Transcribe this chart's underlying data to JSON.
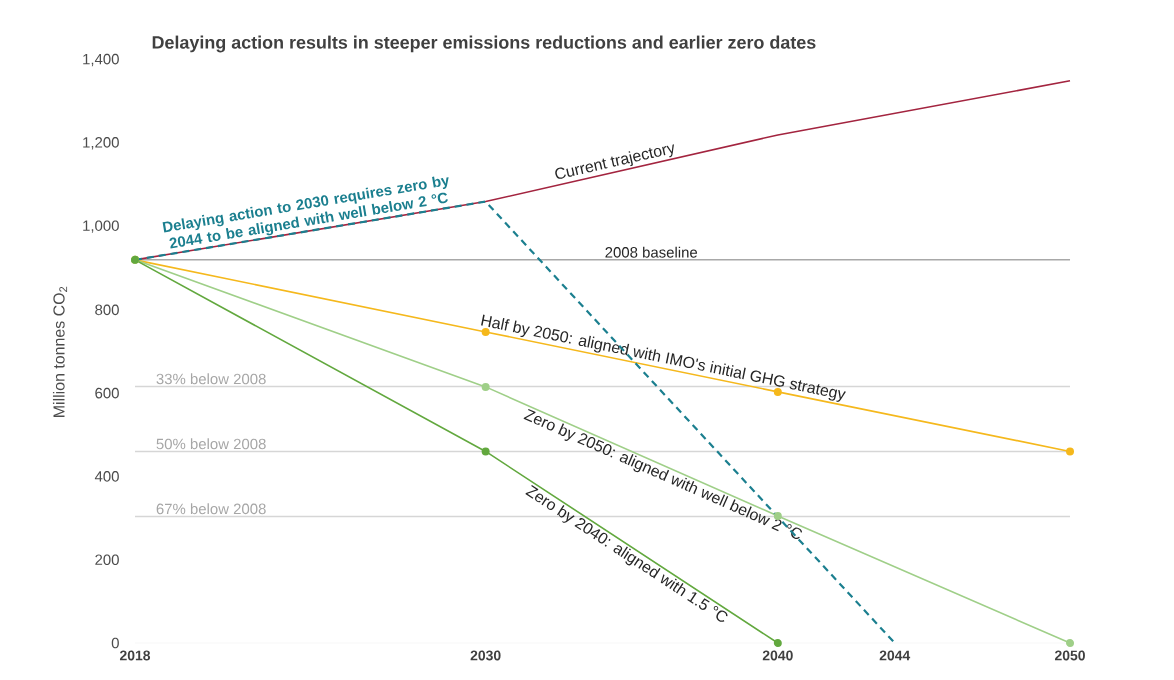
{
  "chart_data": {
    "type": "line",
    "title": "Delaying action results in steeper emissions reductions and earlier zero dates",
    "ylabel": "Million tonnes CO$_{2}$",
    "xlim": [
      2018,
      2050
    ],
    "ylim": [
      0,
      1400
    ],
    "xticks": [
      2018,
      2030,
      2040,
      2044,
      2050
    ],
    "yticks": [
      0,
      200,
      400,
      600,
      800,
      {
        "value": 1000,
        "label": "1,000"
      },
      {
        "value": 1200,
        "label": "1,200"
      },
      {
        "value": 1400,
        "label": "1,400"
      }
    ],
    "grid": false,
    "legend": false,
    "series": [
      {
        "name": "Current trajectory",
        "color": "#a3243f",
        "marker": "none",
        "line_style": "solid",
        "x": [
          2018,
          2030,
          2040,
          2050
        ],
        "values": [
          920,
          1060,
          1220,
          1350
        ]
      },
      {
        "name": "Half by 2050: aligned with IMO's initial GHG strategy",
        "color": "#f5b81c",
        "marker": "circle",
        "line_style": "solid",
        "x": [
          2018,
          2030,
          2040,
          2050
        ],
        "values": [
          920,
          747,
          603,
          460
        ]
      },
      {
        "name": "Zero by 2050: aligned with well below 2 °C",
        "color": "#9fcf88",
        "marker": "circle",
        "line_style": "solid",
        "x": [
          2018,
          2030,
          2040,
          2050
        ],
        "values": [
          920,
          615,
          305,
          0
        ]
      },
      {
        "name": "Zero by 2040: aligned with 1.5 °C",
        "color": "#62a83e",
        "marker": "circle",
        "line_style": "solid",
        "x": [
          2018,
          2030,
          2040
        ],
        "values": [
          920,
          460,
          0
        ]
      },
      {
        "name": "Delaying action to 2030 requires zero by 2044 to be aligned with well below 2 °C",
        "color": "#1b7f8f",
        "marker": "none",
        "line_style": "dashed",
        "x": [
          2018,
          2030,
          2044
        ],
        "values": [
          920,
          1060,
          0
        ]
      }
    ],
    "ref_lines": [
      {
        "axis": "y",
        "value": 920,
        "label": "2008 baseline",
        "color": "#a8a8a8"
      },
      {
        "axis": "y",
        "value": 616,
        "label": "33% below 2008",
        "color": "#d6d6d6"
      },
      {
        "axis": "y",
        "value": 460,
        "label": "50% below 2008",
        "color": "#d6d6d6"
      },
      {
        "axis": "y",
        "value": 304,
        "label": "67% below 2008",
        "color": "#d6d6d6"
      }
    ]
  }
}
